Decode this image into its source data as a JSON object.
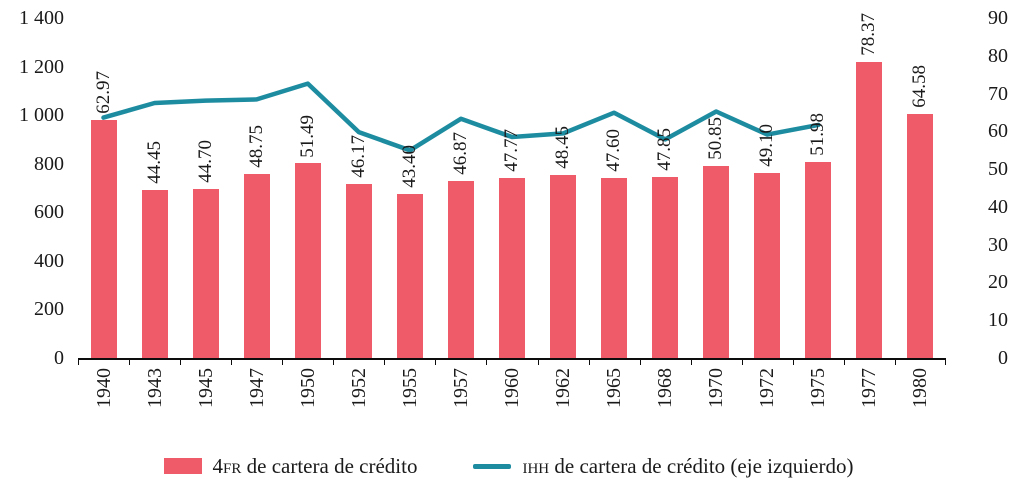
{
  "chart_data": {
    "type": "bar-line-combo",
    "title": "",
    "categories": [
      "1940",
      "1943",
      "1945",
      "1947",
      "1950",
      "1952",
      "1955",
      "1957",
      "1960",
      "1962",
      "1965",
      "1968",
      "1970",
      "1972",
      "1975",
      "1977",
      "1980"
    ],
    "series": [
      {
        "name": "4FR de cartera de crédito",
        "type": "bar",
        "axis": "right",
        "color": "#ef5b68",
        "values": [
          62.97,
          44.45,
          44.7,
          48.75,
          51.49,
          46.17,
          43.4,
          46.87,
          47.77,
          48.45,
          47.6,
          47.85,
          50.85,
          49.1,
          51.98,
          78.37,
          64.58
        ],
        "labels": [
          "62.97",
          "44.45",
          "44.70",
          "48.75",
          "51.49",
          "46.17",
          "43.40",
          "46.87",
          "47.77",
          "48.45",
          "47.60",
          "47.85",
          "50.85",
          "49.10",
          "51.98",
          "78.37",
          "64.58"
        ]
      },
      {
        "name": "IHH de cartera de crédito (eje izquierdo)",
        "type": "line",
        "axis": "left",
        "color": "#1d8ca0",
        "values": [
          990,
          1050,
          1060,
          1065,
          1130,
          930,
          855,
          985,
          910,
          925,
          1010,
          900,
          1015,
          920,
          960,
          null,
          null
        ]
      }
    ],
    "left_axis": {
      "min": 0,
      "max": 1400,
      "step": 200,
      "tick_labels": [
        "0",
        "200",
        "400",
        "600",
        "800",
        "1 000",
        "1 200",
        "1 400"
      ]
    },
    "right_axis": {
      "min": 0,
      "max": 90,
      "step": 10,
      "tick_labels": [
        "0",
        "10",
        "20",
        "30",
        "40",
        "50",
        "60",
        "70",
        "80",
        "90"
      ]
    },
    "grid": "off",
    "legend_position": "bottom",
    "legend": [
      {
        "swatch": "bar",
        "key": "4FR",
        "rest": " de cartera de crédito"
      },
      {
        "swatch": "line",
        "key": "IHH",
        "rest": " de cartera de crédito (eje izquierdo)"
      }
    ]
  }
}
